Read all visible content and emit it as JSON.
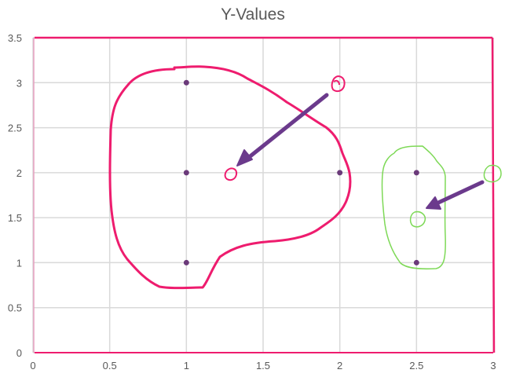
{
  "chart_data": {
    "type": "scatter",
    "title": "Y-Values",
    "xlabel": "",
    "ylabel": "",
    "xlim": [
      0,
      3
    ],
    "ylim": [
      0,
      3.5
    ],
    "x_ticks": [
      "0",
      "0.5",
      "1",
      "1.5",
      "2",
      "2.5",
      "3"
    ],
    "y_ticks": [
      "0",
      "0.5",
      "1",
      "1.5",
      "2",
      "2.5",
      "3",
      "3.5"
    ],
    "grid": true,
    "legend": "none",
    "series": [
      {
        "color": "#6b3a7a",
        "points": [
          {
            "x": 1,
            "y": 3
          },
          {
            "x": 1,
            "y": 2
          },
          {
            "x": 1,
            "y": 1
          },
          {
            "x": 2,
            "y": 2
          },
          {
            "x": 2.5,
            "y": 2
          },
          {
            "x": 2.5,
            "y": 1
          }
        ]
      }
    ]
  },
  "annotations": {
    "pink_color": "#ee1c6e",
    "green_color": "#7ed957",
    "arrow_color": "#6b3a8c"
  }
}
